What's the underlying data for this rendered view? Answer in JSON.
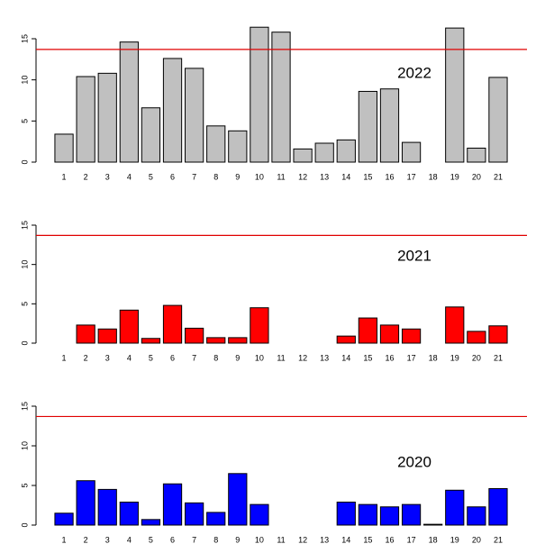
{
  "chart_data": [
    {
      "type": "bar",
      "annotation": "2022",
      "color": "#c0c0c0",
      "categories": [
        "1",
        "2",
        "3",
        "4",
        "5",
        "6",
        "7",
        "8",
        "9",
        "10",
        "11",
        "12",
        "13",
        "14",
        "15",
        "16",
        "17",
        "18",
        "19",
        "20",
        "21"
      ],
      "values": [
        3.4,
        10.4,
        10.8,
        14.6,
        6.6,
        12.6,
        11.4,
        4.4,
        3.8,
        16.4,
        15.8,
        1.6,
        2.3,
        2.7,
        8.6,
        8.9,
        2.4,
        0,
        16.3,
        1.7,
        10.3
      ],
      "ylim": [
        0,
        15
      ],
      "yticks": [
        0,
        5,
        10,
        15
      ],
      "hline": 13.7,
      "hline_color": "#e00000"
    },
    {
      "type": "bar",
      "annotation": "2021",
      "color": "#ff0000",
      "categories": [
        "1",
        "2",
        "3",
        "4",
        "5",
        "6",
        "7",
        "8",
        "9",
        "10",
        "11",
        "12",
        "13",
        "14",
        "15",
        "16",
        "17",
        "18",
        "19",
        "20",
        "21"
      ],
      "values": [
        0,
        2.3,
        1.8,
        4.2,
        0.6,
        4.8,
        1.9,
        0.7,
        0.7,
        4.5,
        0,
        0,
        0,
        0.9,
        3.2,
        2.3,
        1.8,
        0,
        4.6,
        1.5,
        2.2
      ],
      "ylim": [
        0,
        15
      ],
      "yticks": [
        0,
        5,
        10,
        15
      ],
      "hline": 13.7,
      "hline_color": "#e00000"
    },
    {
      "type": "bar",
      "annotation": "2020",
      "color": "#0000ff",
      "categories": [
        "1",
        "2",
        "3",
        "4",
        "5",
        "6",
        "7",
        "8",
        "9",
        "10",
        "11",
        "12",
        "13",
        "14",
        "15",
        "16",
        "17",
        "18",
        "19",
        "20",
        "21"
      ],
      "values": [
        1.5,
        5.6,
        4.5,
        2.9,
        0.7,
        5.2,
        2.8,
        1.6,
        6.5,
        2.6,
        0,
        0,
        0,
        2.9,
        2.6,
        2.3,
        2.6,
        0.1,
        4.4,
        2.3,
        4.6
      ],
      "ylim": [
        0,
        15
      ],
      "yticks": [
        0,
        5,
        10,
        15
      ],
      "hline": 13.7,
      "hline_color": "#e00000"
    }
  ]
}
